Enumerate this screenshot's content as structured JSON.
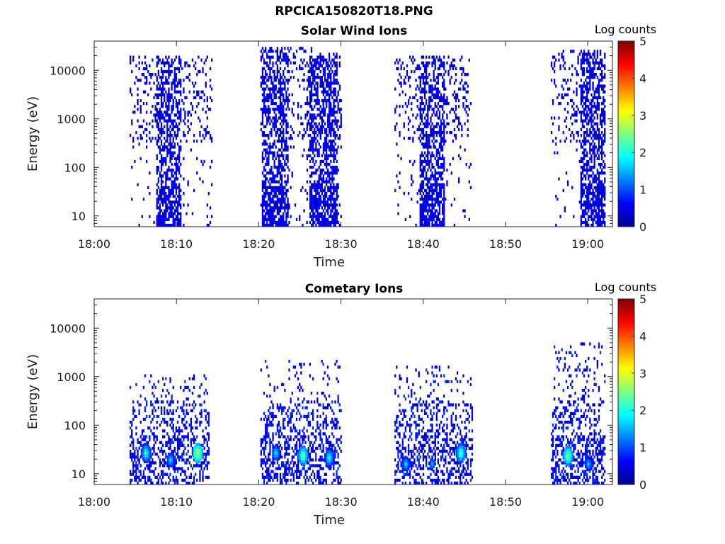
{
  "figure": {
    "title": "RPCICA150820T18.PNG"
  },
  "chart_data": [
    {
      "type": "heatmap",
      "title": "Solar Wind Ions",
      "xlabel": "Time",
      "ylabel": "Energy (eV)",
      "x_ticks": [
        "18:00",
        "18:10",
        "18:20",
        "18:30",
        "18:40",
        "18:50",
        "19:00"
      ],
      "x_range_minutes": [
        0,
        63
      ],
      "y_scale": "log",
      "y_ticks": [
        "10",
        "100",
        "1000",
        "10000"
      ],
      "y_range": [
        6,
        40000
      ],
      "colorbar": {
        "label": "Log counts",
        "ticks": [
          "0",
          "1",
          "2",
          "3",
          "4",
          "5"
        ],
        "range": [
          0,
          5
        ],
        "colormap": "jet"
      },
      "bursts": [
        {
          "start_min": 4.3,
          "end_min": 14.2,
          "emax": 20000,
          "level": 0.3,
          "core_start": 7.5,
          "core_end": 10.5
        },
        {
          "start_min": 20.2,
          "end_min": 30.0,
          "emax": 30000,
          "level": 0.35,
          "core_start": 20.3,
          "core_end": 23.5
        },
        {
          "start_min": 25.8,
          "end_min": 29.8,
          "emax": 20000,
          "level": 0.35,
          "core_start": 26.0,
          "core_end": 29.5
        },
        {
          "start_min": 36.5,
          "end_min": 45.8,
          "emax": 20000,
          "level": 0.3,
          "core_start": 39.5,
          "core_end": 42.5
        },
        {
          "start_min": 55.5,
          "end_min": 62.0,
          "emax": 25000,
          "level": 0.3,
          "core_start": 59.0,
          "core_end": 62.0
        }
      ]
    },
    {
      "type": "heatmap",
      "title": "Cometary Ions",
      "xlabel": "Time",
      "ylabel": "Energy (eV)",
      "x_ticks": [
        "18:00",
        "18:10",
        "18:20",
        "18:30",
        "18:40",
        "18:50",
        "19:00"
      ],
      "x_range_minutes": [
        0,
        63
      ],
      "y_scale": "log",
      "y_ticks": [
        "10",
        "100",
        "1000",
        "10000"
      ],
      "y_range": [
        6,
        40000
      ],
      "colorbar": {
        "label": "Log counts",
        "ticks": [
          "0",
          "1",
          "2",
          "3",
          "4",
          "5"
        ],
        "range": [
          0,
          5
        ],
        "colormap": "jet"
      },
      "bursts": [
        {
          "start_min": 4.3,
          "end_min": 14.0,
          "emax": 1000,
          "level": 0.4
        },
        {
          "start_min": 20.2,
          "end_min": 30.0,
          "emax": 2000,
          "level": 0.4
        },
        {
          "start_min": 36.5,
          "end_min": 46.0,
          "emax": 1600,
          "level": 0.4
        },
        {
          "start_min": 55.5,
          "end_min": 62.0,
          "emax": 5000,
          "level": 0.4
        }
      ],
      "hot_spots": [
        {
          "t_min": 6.2,
          "e_ev": 25,
          "log_counts": 2.2
        },
        {
          "t_min": 9.2,
          "e_ev": 18,
          "log_counts": 1.8
        },
        {
          "t_min": 12.5,
          "e_ev": 25,
          "log_counts": 2.9
        },
        {
          "t_min": 22.0,
          "e_ev": 25,
          "log_counts": 1.9
        },
        {
          "t_min": 25.3,
          "e_ev": 22,
          "log_counts": 2.6
        },
        {
          "t_min": 28.5,
          "e_ev": 20,
          "log_counts": 2.1
        },
        {
          "t_min": 37.8,
          "e_ev": 15,
          "log_counts": 1.8
        },
        {
          "t_min": 41.0,
          "e_ev": 15,
          "log_counts": 1.6
        },
        {
          "t_min": 44.5,
          "e_ev": 25,
          "log_counts": 2.4
        },
        {
          "t_min": 57.5,
          "e_ev": 22,
          "log_counts": 2.7
        },
        {
          "t_min": 60.0,
          "e_ev": 15,
          "log_counts": 1.7
        }
      ]
    }
  ]
}
